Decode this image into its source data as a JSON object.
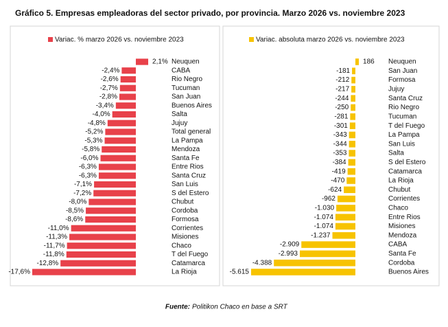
{
  "title": "Gráfico 5. Empresas empleadoras del sector privado, por provincia. Marzo 2026 vs. noviembre 2023",
  "source_label": "Fuente:",
  "source": "Politikon Chaco en base a SRT",
  "chart_data": [
    {
      "type": "hbar",
      "categories": [
        "Neuquen",
        "CABA",
        "Rio Negro",
        "Tucuman",
        "San Juan",
        "Buenos Aires",
        "Salta",
        "Jujuy",
        "Total general",
        "La Pampa",
        "Mendoza",
        "Santa Fe",
        "Entre Rios",
        "Santa Cruz",
        "San Luis",
        "S del Estero",
        "Chubut",
        "Cordoba",
        "Formosa",
        "Corrientes",
        "Misiones",
        "Chaco",
        "T del Fuego",
        "Catamarca",
        "La Rioja"
      ],
      "series": [
        {
          "name": "Variac. % marzo 2026 vs. noviembre 2023",
          "color": "#e8414a",
          "values": [
            2.1,
            -2.4,
            -2.6,
            -2.7,
            -2.8,
            -3.4,
            -4.0,
            -4.8,
            -5.2,
            -5.3,
            -5.8,
            -6.0,
            -6.3,
            -6.3,
            -7.1,
            -7.2,
            -8.0,
            -8.5,
            -8.6,
            -11.0,
            -11.3,
            -11.7,
            -11.8,
            -12.8,
            -17.6
          ],
          "value_labels": [
            "2,1%",
            "-2,4%",
            "-2,6%",
            "-2,7%",
            "-2,8%",
            "-3,4%",
            "-4,0%",
            "-4,8%",
            "-5,2%",
            "-5,3%",
            "-5,8%",
            "-6,0%",
            "-6,3%",
            "-6,3%",
            "-7,1%",
            "-7,2%",
            "-8,0%",
            "-8,5%",
            "-8,6%",
            "-11,0%",
            "-11,3%",
            "-11,7%",
            "-11,8%",
            "-12,8%",
            "-17,6%"
          ]
        }
      ]
    },
    {
      "type": "hbar",
      "categories": [
        "Neuquen",
        "San Juan",
        "Formosa",
        "Jujuy",
        "Santa Cruz",
        "Rio Negro",
        "Tucuman",
        "T del Fuego",
        "La Pampa",
        "San Luis",
        "Salta",
        "S del Estero",
        "Catamarca",
        "La Rioja",
        "Chubut",
        "Corrientes",
        "Chaco",
        "Entre Rios",
        "Misiones",
        "Mendoza",
        "CABA",
        "Santa Fe",
        "Cordoba",
        "Buenos Aires"
      ],
      "series": [
        {
          "name": "Variac. absoluta marzo 2026 vs. noviembre 2023",
          "color": "#f7c300",
          "values": [
            186,
            -181,
            -212,
            -217,
            -244,
            -250,
            -281,
            -301,
            -343,
            -344,
            -353,
            -384,
            -419,
            -470,
            -624,
            -962,
            -1030,
            -1074,
            -1074,
            -1237,
            -2909,
            -2993,
            -4388,
            -5615
          ],
          "value_labels": [
            "186",
            "-181",
            "-212",
            "-217",
            "-244",
            "-250",
            "-281",
            "-301",
            "-343",
            "-344",
            "-353",
            "-384",
            "-419",
            "-470",
            "-624",
            "-962",
            "-1.030",
            "-1.074",
            "-1.074",
            "-1.237",
            "-2.909",
            "-2.993",
            "-4.388",
            "-5.615"
          ]
        }
      ]
    }
  ]
}
